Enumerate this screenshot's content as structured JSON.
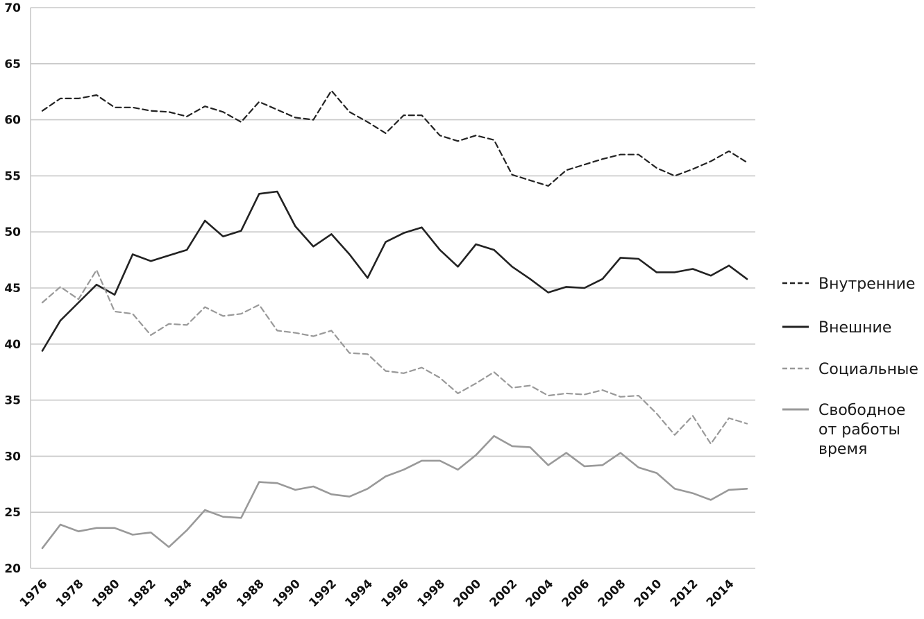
{
  "chart_data": {
    "type": "line",
    "title": "",
    "xlabel": "",
    "ylabel": "",
    "ylim": [
      20,
      70
    ],
    "yticks": [
      20,
      25,
      30,
      35,
      40,
      45,
      50,
      55,
      60,
      65,
      70
    ],
    "xticks": [
      1976,
      1978,
      1980,
      1982,
      1984,
      1986,
      1988,
      1990,
      1992,
      1994,
      1996,
      1998,
      2000,
      2002,
      2004,
      2006,
      2008,
      2010,
      2012,
      2014
    ],
    "grid": "horizontal",
    "legend": "right",
    "x": [
      1976,
      1977,
      1978,
      1979,
      1980,
      1981,
      1982,
      1983,
      1984,
      1985,
      1986,
      1987,
      1988,
      1989,
      1990,
      1991,
      1992,
      1993,
      1994,
      1995,
      1996,
      1997,
      1998,
      1999,
      2000,
      2001,
      2002,
      2003,
      2004,
      2005,
      2006,
      2007,
      2008,
      2009,
      2010,
      2011,
      2012,
      2013,
      2014,
      2015
    ],
    "series": [
      {
        "name": "Внутренние",
        "color": "#222222",
        "dash": "dashed",
        "values": [
          60.8,
          61.9,
          61.9,
          62.2,
          61.1,
          61.1,
          60.8,
          60.7,
          60.3,
          61.2,
          60.7,
          59.8,
          61.6,
          60.9,
          60.2,
          60.0,
          62.6,
          60.7,
          59.8,
          58.8,
          60.4,
          60.4,
          58.6,
          58.1,
          58.6,
          58.2,
          55.1,
          54.6,
          54.1,
          55.5,
          56.0,
          56.5,
          56.9,
          56.9,
          55.7,
          55.0,
          55.6,
          56.3,
          57.2,
          56.2
        ]
      },
      {
        "name": "Внешние",
        "color": "#222222",
        "dash": "solid",
        "values": [
          39.4,
          42.1,
          43.7,
          45.3,
          44.4,
          48.0,
          47.4,
          47.9,
          48.4,
          51.0,
          49.6,
          50.1,
          53.4,
          53.6,
          50.5,
          48.7,
          49.8,
          48.0,
          45.9,
          49.1,
          49.9,
          50.4,
          48.4,
          46.9,
          48.9,
          48.4,
          46.9,
          45.8,
          44.6,
          45.1,
          45.0,
          45.8,
          47.7,
          47.6,
          46.4,
          46.4,
          46.7,
          46.1,
          47.0,
          45.8
        ]
      },
      {
        "name": "Социальные",
        "color": "#999999",
        "dash": "dashed",
        "values": [
          43.7,
          45.1,
          44.0,
          46.6,
          42.9,
          42.7,
          40.8,
          41.8,
          41.7,
          43.3,
          42.5,
          42.7,
          43.5,
          41.2,
          41.0,
          40.7,
          41.2,
          39.2,
          39.1,
          37.6,
          37.4,
          37.9,
          37.0,
          35.6,
          36.5,
          37.5,
          36.1,
          36.3,
          35.4,
          35.6,
          35.5,
          35.9,
          35.3,
          35.4,
          33.8,
          31.9,
          33.6,
          31.1,
          33.4,
          32.9
        ]
      },
      {
        "name": "Свободное от работы время",
        "name_lines": [
          "Свободное",
          "от работы",
          "время"
        ],
        "color": "#999999",
        "dash": "solid",
        "values": [
          21.8,
          23.9,
          23.3,
          23.6,
          23.6,
          23.0,
          23.2,
          21.9,
          23.4,
          25.2,
          24.6,
          24.5,
          27.7,
          27.6,
          27.0,
          27.3,
          26.6,
          26.4,
          27.1,
          28.2,
          28.8,
          29.6,
          29.6,
          28.8,
          30.1,
          31.8,
          30.9,
          30.8,
          29.2,
          30.3,
          29.1,
          29.2,
          30.3,
          29.0,
          28.5,
          27.1,
          26.7,
          26.1,
          27.0,
          27.1
        ]
      }
    ]
  }
}
